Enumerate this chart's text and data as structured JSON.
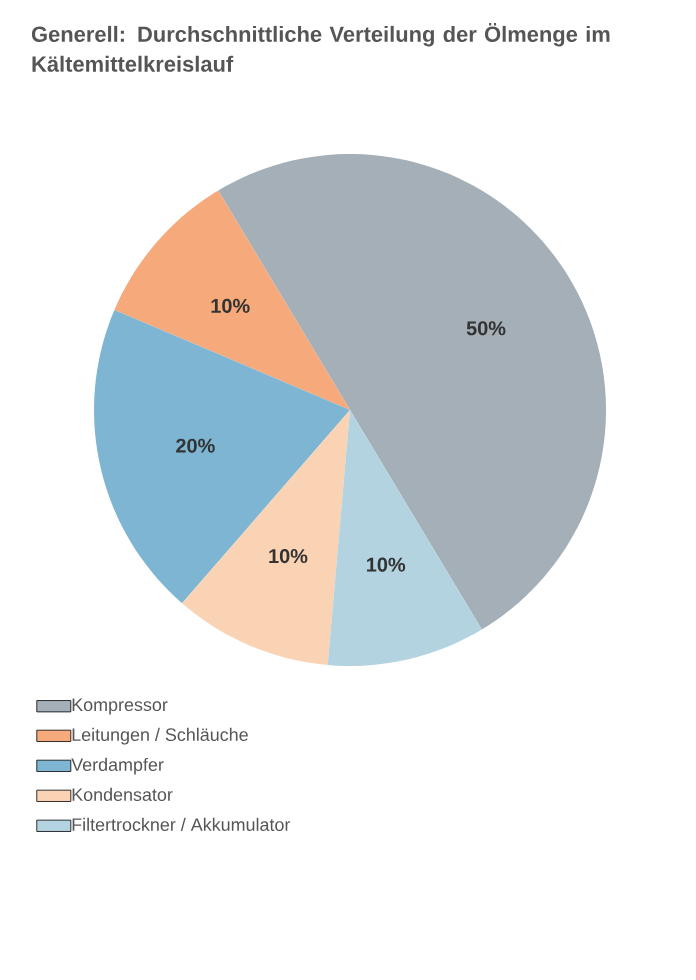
{
  "chart_data": {
    "type": "pie",
    "title": "Generell: Durchschnittliche Verteilung der Ölmenge im Kältemittelkreislauf",
    "categories": [
      "Kompressor",
      "Leitungen / Schläuche",
      "Verdampfer",
      "Kondensator",
      "Filtertrockner / Akkumulator"
    ],
    "values": [
      50,
      10,
      20,
      10,
      10
    ],
    "value_labels": [
      "50%",
      "10%",
      "20%",
      "10%",
      "10%"
    ],
    "colors": [
      "#a4afb8",
      "#f6a97a",
      "#7db5d3",
      "#fad3b5",
      "#b3d3e1"
    ],
    "legend": "bottom"
  }
}
